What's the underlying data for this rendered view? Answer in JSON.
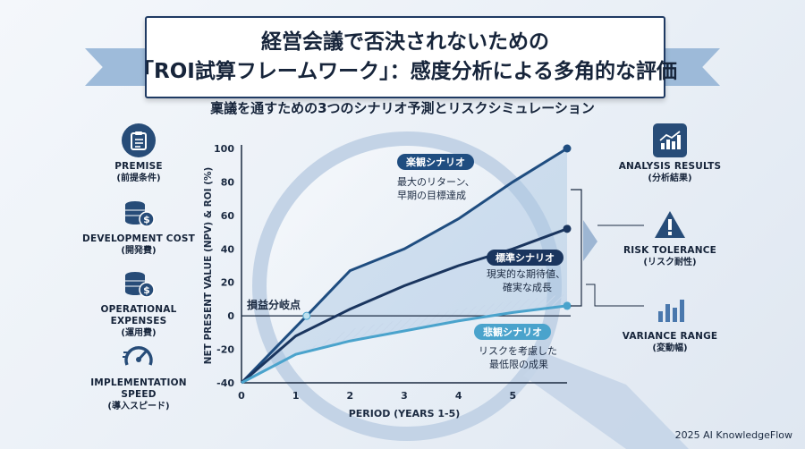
{
  "title": {
    "line1": "経営会議で否決されないための",
    "line2": "「ROI試算フレームワーク」：感度分析による多角的な評価"
  },
  "subtitle": "稟議を通すための3つのシナリオ予測とリスクシミュレーション",
  "left_items": [
    {
      "icon": "clipboard-icon",
      "label": "PREMISE",
      "sub": "(前提条件)"
    },
    {
      "icon": "coins-icon",
      "label": "DEVELOPMENT COST",
      "sub": "(開発費)"
    },
    {
      "icon": "coins-icon",
      "label": "OPERATIONAL EXPENSES",
      "sub": "(運用費)"
    },
    {
      "icon": "speedometer-icon",
      "label": "IMPLEMENTATION SPEED",
      "sub": "(導入スピード)"
    }
  ],
  "right_items": [
    {
      "icon": "bar-chart-icon",
      "label": "ANALYSIS RESULTS",
      "sub": "(分析結果)"
    },
    {
      "icon": "warning-icon",
      "label": "RISK TOLERANCE",
      "sub": "(リスク耐性)"
    },
    {
      "icon": "bar-chart-icon",
      "label": "VARIANCE RANGE",
      "sub": "(変動幅)"
    }
  ],
  "colors": {
    "dark_navy": "#1f3a63",
    "mid_blue": "#244f86",
    "light_blue": "#4aa3cc",
    "band": "#9fbfdd"
  },
  "chart_data": {
    "type": "line",
    "xlabel": "PERIOD (YEARS 1-5)",
    "ylabel": "NET PRESENT VALUE (NPV) & ROI (%)",
    "xlim": [
      0,
      6
    ],
    "ylim": [
      -40,
      100
    ],
    "x_ticks": [
      "0",
      "1",
      "2",
      "3",
      "4",
      "5"
    ],
    "y_ticks": [
      "-40",
      "-20",
      "0",
      "20",
      "40",
      "60",
      "80",
      "100"
    ],
    "breakeven_label": "損益分岐点",
    "series": [
      {
        "name": "楽観シナリオ",
        "desc_line1": "最大のリターン、",
        "desc_line2": "早期の目標達成",
        "x": [
          0,
          1.2,
          2,
          3,
          4,
          5,
          6
        ],
        "y": [
          -40,
          0,
          27,
          40,
          58,
          80,
          100
        ]
      },
      {
        "name": "標準シナリオ",
        "desc_line1": "現実的な期待値、",
        "desc_line2": "確実な成長",
        "x": [
          0,
          1,
          2,
          3,
          4,
          5,
          6
        ],
        "y": [
          -40,
          -12,
          4,
          18,
          30,
          40,
          52
        ]
      },
      {
        "name": "悲観シナリオ",
        "desc_line1": "リスクを考慮した",
        "desc_line2": "最低限の成果",
        "x": [
          0,
          1,
          2,
          3,
          4,
          5,
          6
        ],
        "y": [
          -40,
          -23,
          -15,
          -9,
          -3,
          2,
          6
        ]
      }
    ]
  },
  "copyright": "2025 AI KnowledgeFlow"
}
